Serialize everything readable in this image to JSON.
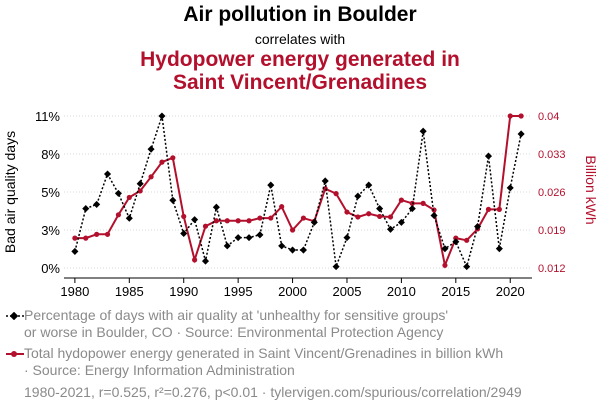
{
  "header": {
    "title": "Air pollution in Boulder",
    "subtitle": "correlates with",
    "title2_line1": "Hydopower energy generated in",
    "title2_line2": "Saint Vincent/Grenadines"
  },
  "legend": {
    "series1_line1": "Percentage of days with air quality at 'unhealthy for sensitive groups'",
    "series1_line2": "or worse in Boulder, CO · Source: Environmental Protection Agency",
    "series2_line1": "Total hydopower energy generated in Saint Vincent/Grenadines in billion kWh",
    "series2_line2": "· Source: Energy Information Administration"
  },
  "footer": "1980-2021, r=0.525, r²=0.276, p<0.01 · tylervigen.com/spurious/correlation/2949",
  "chart_data": {
    "type": "line",
    "x": [
      1980,
      1981,
      1982,
      1983,
      1984,
      1985,
      1986,
      1987,
      1988,
      1989,
      1990,
      1991,
      1992,
      1993,
      1994,
      1995,
      1996,
      1997,
      1998,
      1999,
      2000,
      2001,
      2002,
      2003,
      2004,
      2005,
      2006,
      2007,
      2008,
      2009,
      2010,
      2011,
      2012,
      2013,
      2014,
      2015,
      2016,
      2017,
      2018,
      2019,
      2020,
      2021
    ],
    "xticks": [
      "1980",
      "1985",
      "1990",
      "1995",
      "2000",
      "2005",
      "2010",
      "2015",
      "2020"
    ],
    "xlim": [
      1979,
      2022
    ],
    "ylabel": "Bad air quality days",
    "y2label": "Billion kWh",
    "yticks": [
      "0%",
      "3%",
      "5%",
      "8%",
      "11%"
    ],
    "y2ticks": [
      "0.012",
      "0.019",
      "0.026",
      "0.033",
      "0.04"
    ],
    "ylim": [
      0,
      11
    ],
    "y2lim": [
      0.012,
      0.04
    ],
    "series": [
      {
        "axis": "left",
        "color": "#000000",
        "style": "dotted",
        "values": [
          1.2,
          4.3,
          4.6,
          6.8,
          5.4,
          3.6,
          6.1,
          8.6,
          11.0,
          4.9,
          2.5,
          3.5,
          0.5,
          4.4,
          1.6,
          2.2,
          2.2,
          2.4,
          6.0,
          1.6,
          1.3,
          1.3,
          3.3,
          6.3,
          0.1,
          2.2,
          5.2,
          6.0,
          4.3,
          2.8,
          3.3,
          4.3,
          9.9,
          3.8,
          1.4,
          1.9,
          0.1,
          3.0,
          8.1,
          1.4,
          5.8,
          9.7
        ]
      },
      {
        "axis": "right",
        "color": "#b3102d",
        "style": "solid",
        "values": [
          0.0175,
          0.0175,
          0.0182,
          0.0182,
          0.0218,
          0.025,
          0.0262,
          0.0288,
          0.0315,
          0.0323,
          0.0215,
          0.0135,
          0.0197,
          0.0207,
          0.0207,
          0.0207,
          0.0207,
          0.0212,
          0.0212,
          0.0233,
          0.019,
          0.0212,
          0.0206,
          0.0266,
          0.0257,
          0.0223,
          0.0214,
          0.022,
          0.0215,
          0.0214,
          0.0245,
          0.0239,
          0.0239,
          0.0227,
          0.0125,
          0.0175,
          0.0171,
          0.0192,
          0.0228,
          0.0228,
          0.04,
          0.04
        ]
      }
    ]
  }
}
